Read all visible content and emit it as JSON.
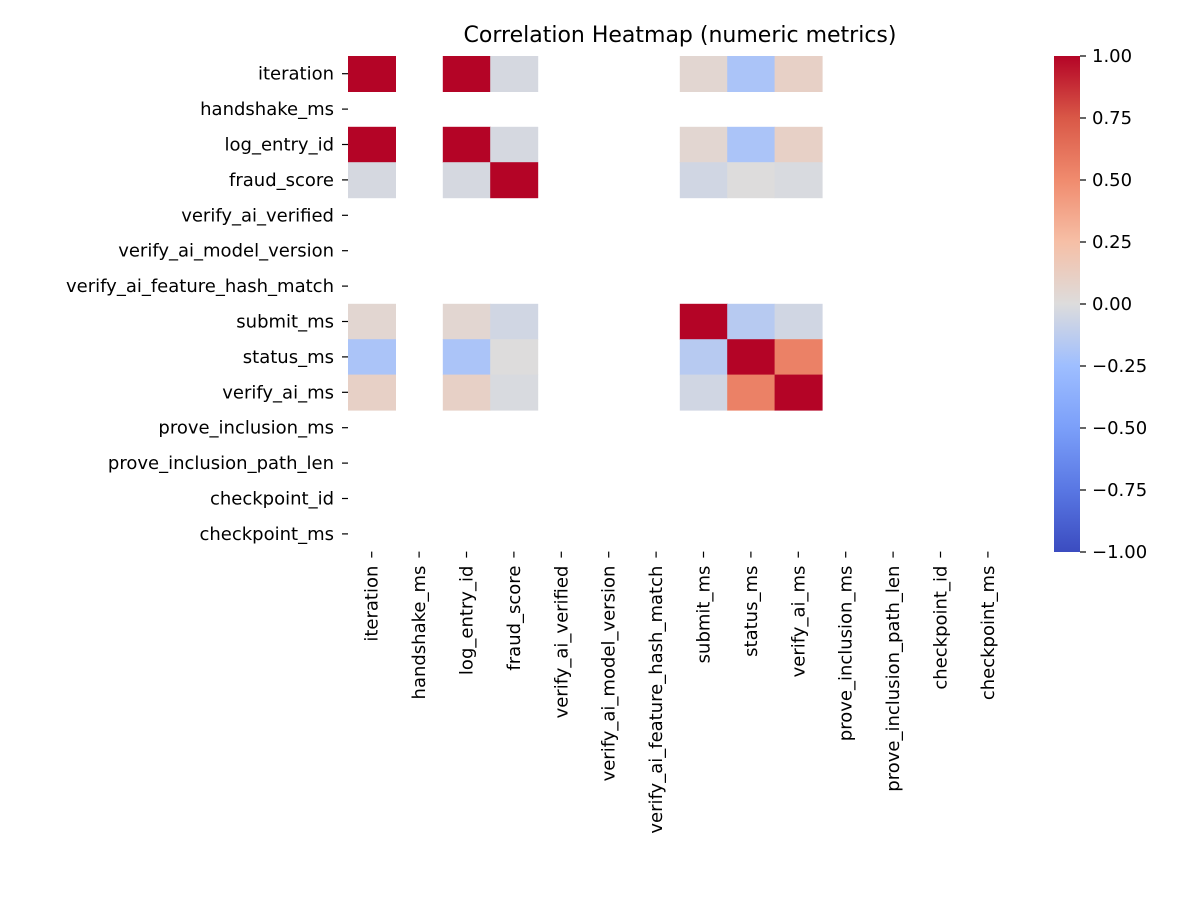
{
  "chart_data": {
    "type": "heatmap",
    "title": "Correlation Heatmap (numeric metrics)",
    "xlabel": "",
    "ylabel": "",
    "labels": [
      "iteration",
      "handshake_ms",
      "log_entry_id",
      "fraud_score",
      "verify_ai_verified",
      "verify_ai_model_version",
      "verify_ai_feature_hash_match",
      "submit_ms",
      "status_ms",
      "verify_ai_ms",
      "prove_inclusion_ms",
      "prove_inclusion_path_len",
      "checkpoint_id",
      "checkpoint_ms"
    ],
    "matrix": [
      [
        1.0,
        null,
        1.0,
        -0.03,
        null,
        null,
        null,
        0.05,
        -0.2,
        0.1,
        null,
        null,
        null,
        null
      ],
      [
        null,
        null,
        null,
        null,
        null,
        null,
        null,
        null,
        null,
        null,
        null,
        null,
        null,
        null
      ],
      [
        1.0,
        null,
        1.0,
        -0.03,
        null,
        null,
        null,
        0.05,
        -0.2,
        0.1,
        null,
        null,
        null,
        null
      ],
      [
        -0.03,
        null,
        -0.03,
        1.0,
        null,
        null,
        null,
        -0.05,
        0.0,
        -0.02,
        null,
        null,
        null,
        null
      ],
      [
        null,
        null,
        null,
        null,
        null,
        null,
        null,
        null,
        null,
        null,
        null,
        null,
        null,
        null
      ],
      [
        null,
        null,
        null,
        null,
        null,
        null,
        null,
        null,
        null,
        null,
        null,
        null,
        null,
        null
      ],
      [
        null,
        null,
        null,
        null,
        null,
        null,
        null,
        null,
        null,
        null,
        null,
        null,
        null,
        null
      ],
      [
        0.05,
        null,
        0.05,
        -0.05,
        null,
        null,
        null,
        1.0,
        -0.15,
        -0.05,
        null,
        null,
        null,
        null
      ],
      [
        -0.2,
        null,
        -0.2,
        0.0,
        null,
        null,
        null,
        -0.15,
        1.0,
        0.55,
        null,
        null,
        null,
        null
      ],
      [
        0.1,
        null,
        0.1,
        -0.02,
        null,
        null,
        null,
        -0.05,
        0.55,
        1.0,
        null,
        null,
        null,
        null
      ],
      [
        null,
        null,
        null,
        null,
        null,
        null,
        null,
        null,
        null,
        null,
        null,
        null,
        null,
        null
      ],
      [
        null,
        null,
        null,
        null,
        null,
        null,
        null,
        null,
        null,
        null,
        null,
        null,
        null,
        null
      ],
      [
        null,
        null,
        null,
        null,
        null,
        null,
        null,
        null,
        null,
        null,
        null,
        null,
        null,
        null
      ],
      [
        null,
        null,
        null,
        null,
        null,
        null,
        null,
        null,
        null,
        null,
        null,
        null,
        null,
        null
      ]
    ],
    "colorbar": {
      "min": -1.0,
      "max": 1.0,
      "colormap": "coolwarm",
      "ticks": [
        "1.00",
        "0.75",
        "0.50",
        "0.25",
        "0.00",
        "−0.25",
        "−0.50",
        "−0.75",
        "−1.00"
      ],
      "tick_values": [
        1.0,
        0.75,
        0.5,
        0.25,
        0.0,
        -0.25,
        -0.5,
        -0.75,
        -1.0
      ]
    },
    "grid": false,
    "legend": "colorbar-right"
  }
}
